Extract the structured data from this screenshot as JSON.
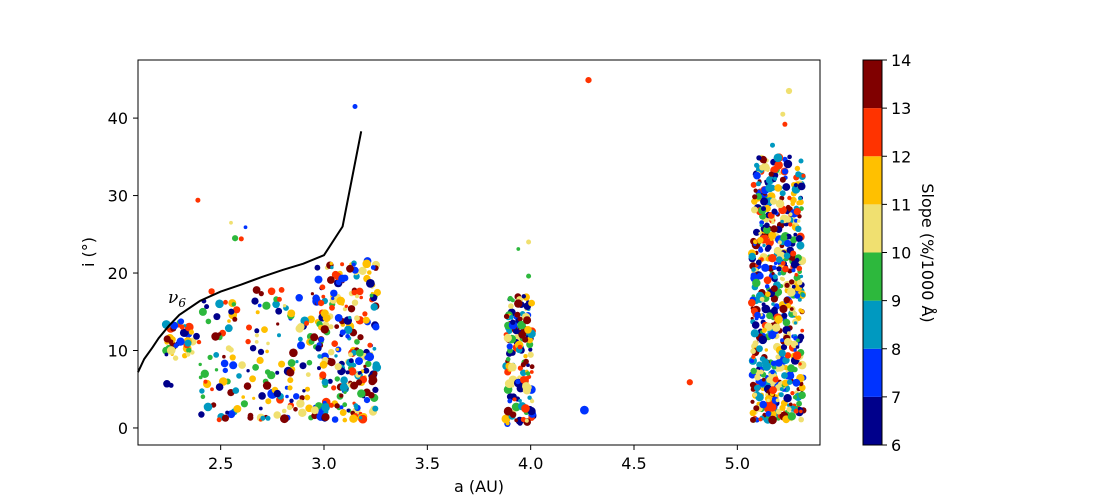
{
  "chart_data": {
    "type": "scatter",
    "xlabel": "a (AU)",
    "ylabel": "i (°)",
    "xlim": [
      2.1,
      5.4
    ],
    "ylim": [
      -2.2,
      47.5
    ],
    "x_ticks": [
      2.5,
      3.0,
      3.5,
      4.0,
      4.5,
      5.0
    ],
    "x_tick_labels": [
      "2.5",
      "3.0",
      "3.5",
      "4.0",
      "4.5",
      "5.0"
    ],
    "y_ticks": [
      0,
      10,
      20,
      30,
      40
    ],
    "y_tick_labels": [
      "0",
      "10",
      "20",
      "30",
      "40"
    ],
    "grid": false,
    "colorbar": {
      "label": "Slope (%/1000 Å)",
      "min": 6,
      "max": 14,
      "ticks": [
        6,
        7,
        8,
        9,
        10,
        11,
        12,
        13,
        14
      ],
      "tick_labels": [
        "6",
        "7",
        "8",
        "9",
        "10",
        "11",
        "12",
        "13",
        "14"
      ],
      "colors": [
        "#00008b",
        "#0033ff",
        "#0099c0",
        "#2db83d",
        "#f0e070",
        "#ffc000",
        "#ff3300",
        "#800000"
      ]
    },
    "annotation": {
      "text": "ν",
      "subscript": "6",
      "x": 2.25,
      "y": 16.3
    },
    "nu6_line": {
      "x": [
        2.1,
        2.13,
        2.17,
        2.2,
        2.25,
        2.3,
        2.4,
        2.5,
        2.6,
        2.7,
        2.8,
        2.9,
        3.0,
        3.09,
        3.18
      ],
      "y": [
        7.2,
        8.9,
        10.4,
        11.6,
        13.2,
        14.6,
        16.4,
        17.6,
        18.5,
        19.5,
        20.4,
        21.2,
        22.3,
        26.0,
        38.3
      ]
    },
    "points": [
      {
        "x": 4.28,
        "y": 44.9,
        "c": 12.6,
        "s": 5
      },
      {
        "x": 3.15,
        "y": 41.5,
        "c": 7.2,
        "s": 4
      },
      {
        "x": 2.39,
        "y": 29.4,
        "c": 12.8,
        "s": 4
      },
      {
        "x": 2.24,
        "y": 5.7,
        "c": 6.3,
        "s": 6
      },
      {
        "x": 2.26,
        "y": 5.5,
        "c": 6.5,
        "s": 4
      },
      {
        "x": 4.26,
        "y": 2.3,
        "c": 7.3,
        "s": 7
      },
      {
        "x": 4.77,
        "y": 5.9,
        "c": 12.6,
        "s": 5
      },
      {
        "x": 2.57,
        "y": 24.5,
        "c": 9.2,
        "s": 5
      },
      {
        "x": 2.6,
        "y": 24.4,
        "c": 12.8,
        "s": 4
      },
      {
        "x": 2.62,
        "y": 25.9,
        "c": 7.5,
        "s": 3
      },
      {
        "x": 2.55,
        "y": 26.5,
        "c": 10.5,
        "s": 3
      },
      {
        "x": 2.75,
        "y": 4.4,
        "c": 7.4,
        "s": 8
      },
      {
        "x": 2.63,
        "y": 5.4,
        "c": 13.5,
        "s": 6
      },
      {
        "x": 2.84,
        "y": 2.9,
        "c": 12.4,
        "s": 5
      },
      {
        "x": 2.88,
        "y": 16.8,
        "c": 7.6,
        "s": 6
      },
      {
        "x": 2.92,
        "y": 5.0,
        "c": 11.5,
        "s": 4
      },
      {
        "x": 3.93,
        "y": 2.7,
        "c": 9.2,
        "s": 7
      },
      {
        "x": 3.97,
        "y": 6.1,
        "c": 12.5,
        "s": 7
      },
      {
        "x": 3.95,
        "y": 12.3,
        "c": 6.4,
        "s": 5
      },
      {
        "x": 3.99,
        "y": 24.0,
        "c": 10.6,
        "s": 4
      },
      {
        "x": 3.94,
        "y": 23.1,
        "c": 9.2,
        "s": 3
      },
      {
        "x": 3.99,
        "y": 19.6,
        "c": 9.0,
        "s": 4
      },
      {
        "x": 5.25,
        "y": 43.5,
        "c": 10.5,
        "s": 5
      },
      {
        "x": 5.22,
        "y": 40.5,
        "c": 10.4,
        "s": 4
      },
      {
        "x": 5.23,
        "y": 39.2,
        "c": 12.6,
        "s": 4
      },
      {
        "x": 5.17,
        "y": 36.5,
        "c": 8.4,
        "s": 4
      },
      {
        "x": 5.08,
        "y": 1.0,
        "c": 9.0,
        "s": 4
      },
      {
        "x": 5.26,
        "y": 1.2,
        "c": 10.6,
        "s": 4
      }
    ]
  }
}
